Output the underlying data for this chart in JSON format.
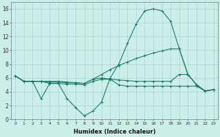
{
  "xlabel": "Humidex (Indice chaleur)",
  "bg_color": "#cceee8",
  "line_color": "#1a7a6a",
  "grid_color": "#aad4ce",
  "ylim": [
    0,
    17
  ],
  "yticks": [
    0,
    2,
    4,
    6,
    8,
    10,
    12,
    14,
    16
  ],
  "xticks": [
    0,
    1,
    2,
    3,
    4,
    5,
    6,
    7,
    8,
    9,
    10,
    11,
    12,
    13,
    14,
    15,
    16,
    17,
    18,
    19,
    20,
    21,
    22,
    23
  ],
  "s1_x": [
    0,
    1,
    2,
    3,
    4,
    5,
    6,
    7,
    8,
    9,
    10,
    11,
    12,
    13,
    14,
    15,
    16,
    17,
    18,
    19,
    20,
    21,
    22,
    23
  ],
  "s1_y": [
    6.3,
    5.5,
    5.5,
    3.0,
    5.2,
    5.2,
    3.0,
    1.7,
    0.5,
    1.2,
    2.5,
    6.0,
    8.0,
    11.0,
    13.8,
    15.7,
    16.0,
    15.7,
    14.2,
    10.2,
    6.5,
    5.0,
    4.1,
    4.3
  ],
  "s2_x": [
    0,
    1,
    2,
    3,
    4,
    5,
    6,
    7,
    8,
    9,
    10,
    11,
    12,
    13,
    14,
    15,
    16,
    17,
    18,
    19,
    20,
    21,
    22,
    23
  ],
  "s2_y": [
    6.3,
    5.5,
    5.5,
    5.5,
    5.5,
    5.5,
    5.4,
    5.3,
    5.2,
    5.8,
    6.5,
    7.2,
    7.8,
    8.3,
    8.8,
    9.2,
    9.6,
    9.9,
    10.2,
    10.2,
    6.5,
    5.0,
    4.1,
    4.3
  ],
  "s3_x": [
    0,
    1,
    2,
    3,
    4,
    5,
    6,
    7,
    8,
    9,
    10,
    11,
    12,
    13,
    14,
    15,
    16,
    17,
    18,
    19,
    20,
    21,
    22,
    23
  ],
  "s3_y": [
    6.3,
    5.5,
    5.5,
    5.5,
    5.4,
    5.4,
    5.3,
    5.3,
    5.2,
    5.8,
    6.0,
    5.8,
    5.7,
    5.6,
    5.5,
    5.5,
    5.5,
    5.5,
    5.5,
    6.5,
    6.5,
    5.0,
    4.1,
    4.3
  ],
  "s4_x": [
    0,
    1,
    2,
    3,
    4,
    5,
    6,
    7,
    8,
    9,
    10,
    11,
    12,
    13,
    14,
    15,
    16,
    17,
    18,
    19,
    20,
    21,
    22,
    23
  ],
  "s4_y": [
    6.3,
    5.5,
    5.5,
    5.5,
    5.2,
    5.2,
    5.1,
    5.1,
    5.0,
    5.5,
    5.8,
    5.8,
    5.0,
    4.8,
    4.8,
    4.8,
    4.8,
    4.8,
    4.8,
    4.8,
    4.8,
    4.8,
    4.1,
    4.3
  ]
}
